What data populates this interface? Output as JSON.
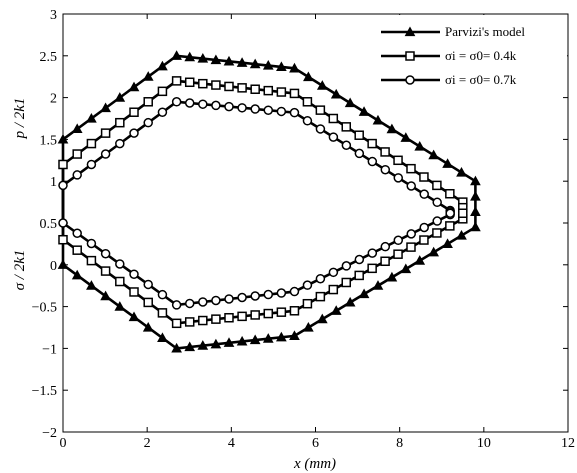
{
  "chart_data": {
    "type": "line",
    "xlabel": "x (mm)",
    "ylabel_top": "p / 2k1",
    "ylabel_bottom": "σ / 2k1",
    "xlim": [
      0,
      12
    ],
    "ylim": [
      -2,
      3
    ],
    "xticks": [
      "0",
      "2",
      "4",
      "6",
      "8",
      "10",
      "12"
    ],
    "yticks": [
      "−2",
      "−1.5",
      "−1",
      "−0.5",
      "0",
      "0.5",
      "1",
      "1.5",
      "2",
      "2.5",
      "3"
    ],
    "grid": false,
    "legend_position": "top-right",
    "legend": [
      "Parvizi's model",
      "σi = σ0= 0.4k",
      "σi = σ0= 0.7k"
    ],
    "series": [
      {
        "name": "Parvizi's model",
        "marker": "triangle",
        "top": [
          [
            0,
            1.5
          ],
          [
            2.7,
            2.5
          ],
          [
            5.5,
            2.35
          ],
          [
            9.8,
            1.0
          ]
        ],
        "bottom": [
          [
            0,
            0.0
          ],
          [
            2.7,
            -1.0
          ],
          [
            5.5,
            -0.85
          ],
          [
            9.8,
            0.45
          ]
        ]
      },
      {
        "name": "σi = σ0= 0.4k",
        "marker": "square",
        "top": [
          [
            0,
            1.2
          ],
          [
            2.7,
            2.2
          ],
          [
            5.5,
            2.05
          ],
          [
            9.5,
            0.75
          ]
        ],
        "bottom": [
          [
            0,
            0.3
          ],
          [
            2.7,
            -0.7
          ],
          [
            5.5,
            -0.55
          ],
          [
            9.5,
            0.55
          ]
        ]
      },
      {
        "name": "σi = σ0= 0.7k",
        "marker": "circle",
        "top": [
          [
            0,
            0.95
          ],
          [
            2.7,
            1.95
          ],
          [
            5.5,
            1.82
          ],
          [
            9.2,
            0.65
          ]
        ],
        "bottom": [
          [
            0,
            0.5
          ],
          [
            2.7,
            -0.48
          ],
          [
            5.5,
            -0.32
          ],
          [
            9.2,
            0.6
          ]
        ]
      }
    ]
  }
}
